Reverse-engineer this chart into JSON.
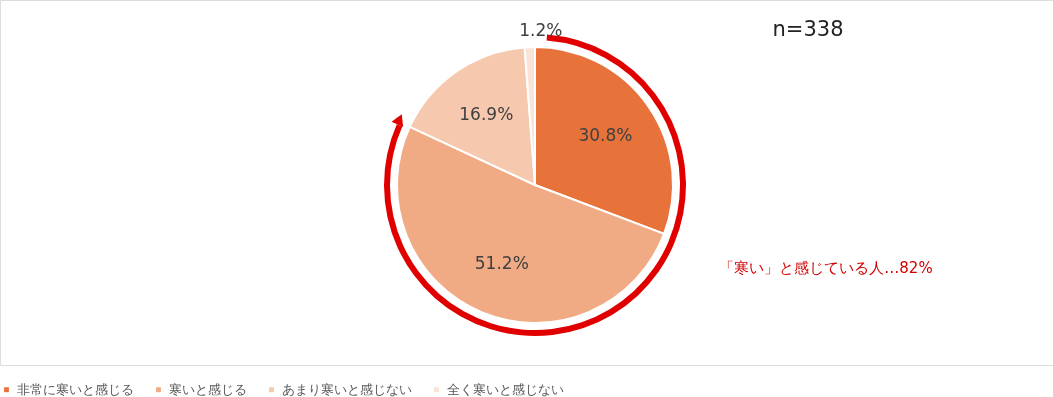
{
  "chart_data": {
    "type": "pie",
    "categories": [
      "非常に寒いと感じる",
      "寒いと感じる",
      "あまり寒いと感じない",
      "全く寒いと感じない"
    ],
    "values": [
      30.8,
      51.2,
      16.9,
      1.2
    ],
    "value_labels": [
      "30.8%",
      "51.2%",
      "16.9%",
      "1.2%"
    ],
    "colors": [
      "#e8733a",
      "#f0aa84",
      "#f6c8ae",
      "#f9e4d8"
    ],
    "legend": "bottom",
    "annotations": [
      "n=338",
      "「寒い」と感じている人…82%"
    ]
  }
}
